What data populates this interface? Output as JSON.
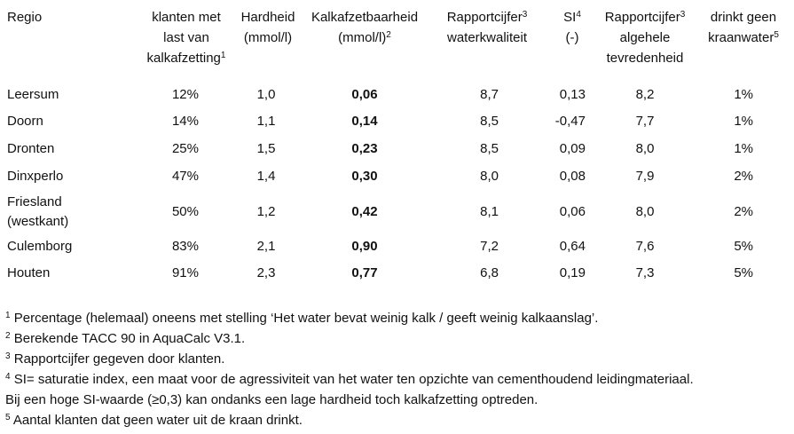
{
  "table": {
    "header": [
      [
        {
          "t": "Regio"
        }
      ],
      [
        {
          "t": "klanten met"
        },
        {
          "t": "last van"
        },
        {
          "t": "kalkafzetting",
          "sup": "1"
        }
      ],
      [
        {
          "t": "Hardheid"
        },
        {
          "t": "(mmol/l)"
        }
      ],
      [
        {
          "t": "Kalkafzetbaarheid"
        },
        {
          "t": "(mmol/l)",
          "sup": "2"
        }
      ],
      [
        {
          "t": "Rapportcijfer",
          "sup": "3"
        },
        {
          "t": "waterkwaliteit"
        }
      ],
      [
        {
          "t": "SI",
          "sup": "4"
        },
        {
          "t": "(-)"
        }
      ],
      [
        {
          "t": "Rapportcijfer",
          "sup": "3"
        },
        {
          "t": "algehele"
        },
        {
          "t": "tevredenheid"
        }
      ],
      [
        {
          "t": "drinkt geen"
        },
        {
          "t": "kraanwater",
          "sup": "5"
        }
      ]
    ],
    "rows": [
      [
        "Leersum",
        "12%",
        "1,0",
        "0,06",
        "8,7",
        "0,13",
        "8,2",
        "1%"
      ],
      [
        "Doorn",
        "14%",
        "1,1",
        "0,14",
        "8,5",
        "-0,47",
        "7,7",
        "1%"
      ],
      [
        "Dronten",
        "25%",
        "1,5",
        "0,23",
        "8,5",
        "0,09",
        "8,0",
        "1%"
      ],
      [
        "Dinxperlo",
        "47%",
        "1,4",
        "0,30",
        "8,0",
        "0,08",
        "7,9",
        "2%"
      ],
      [
        "Friesland (westkant)",
        "50%",
        "1,2",
        "0,42",
        "8,1",
        "0,06",
        "8,0",
        "2%"
      ],
      [
        "Culemborg",
        "83%",
        "2,1",
        "0,90",
        "7,2",
        "0,64",
        "7,6",
        "5%"
      ],
      [
        "Houten",
        "91%",
        "2,3",
        "0,77",
        "6,8",
        "0,19",
        "7,3",
        "5%"
      ]
    ]
  },
  "footnotes": [
    {
      "mark": "1",
      "text": "Percentage (helemaal) oneens met stelling ‘Het water bevat weinig kalk / geeft weinig kalkaanslag’."
    },
    {
      "mark": "2",
      "text": "Berekende TACC 90 in AquaCalc V3.1."
    },
    {
      "mark": "3",
      "text": "Rapportcijfer gegeven door klanten."
    },
    {
      "mark": "4",
      "text": "SI= saturatie index, een maat voor de agressiviteit van het water ten opzichte van cementhoudend leidingmateriaal. Bij een hoge SI-waarde (≥0,3) kan ondanks een lage hardheid toch kalkafzetting optreden."
    },
    {
      "mark": "5",
      "text": "Aantal klanten dat geen water uit de kraan drinkt."
    }
  ]
}
